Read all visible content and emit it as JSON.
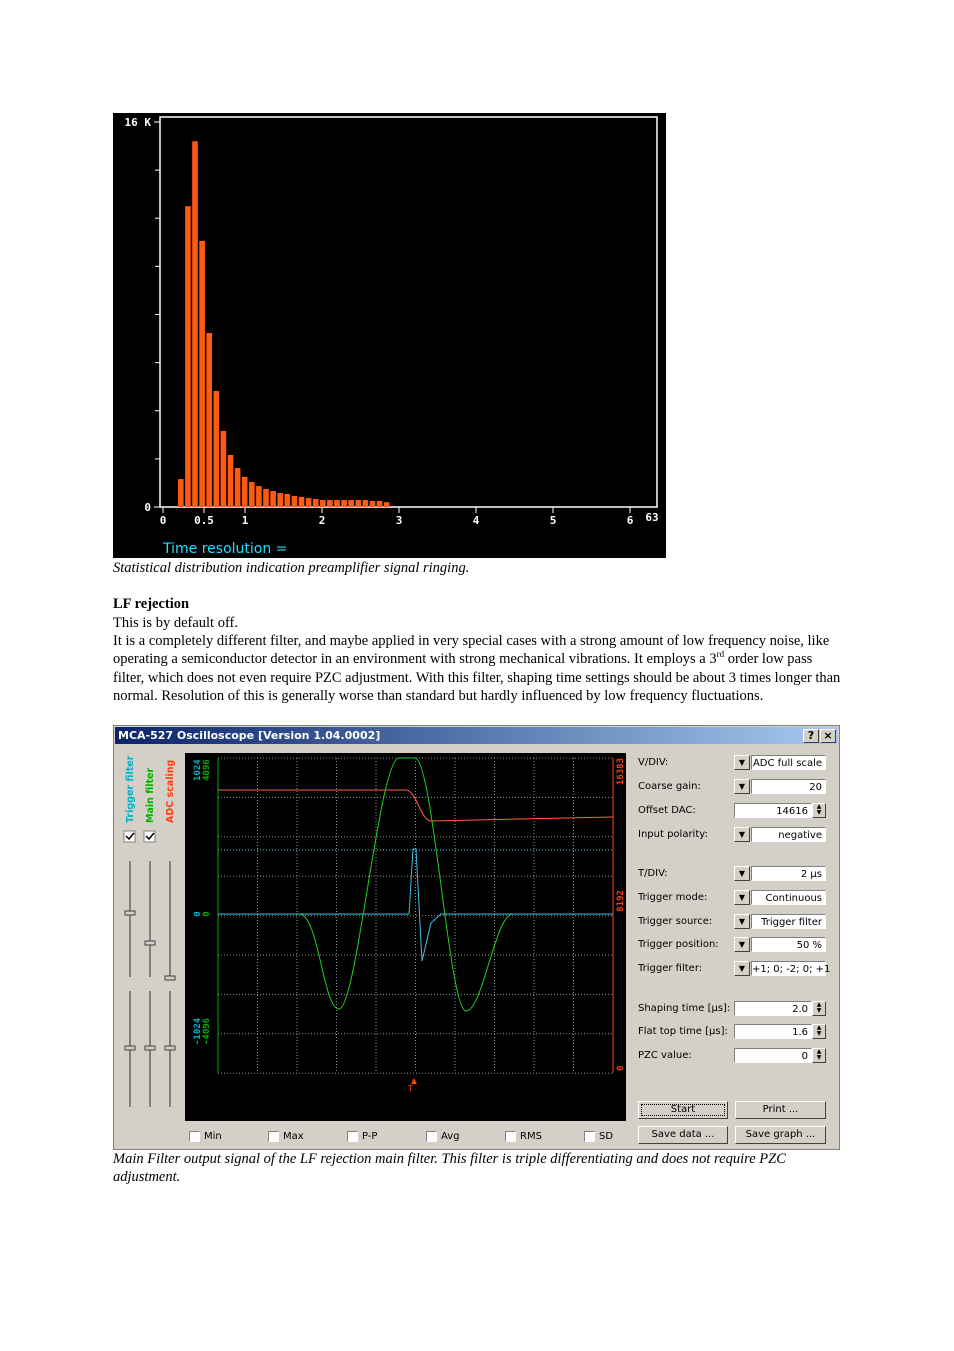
{
  "histogram": {
    "type": "bar",
    "color": "#ff5a14",
    "ylim": [
      0,
      16
    ],
    "yticks": [
      0,
      {
        "value": 16,
        "label": "16 K"
      }
    ],
    "yminor": [
      2,
      4,
      6,
      8,
      10,
      12,
      14
    ],
    "xticks": [
      0,
      0.5,
      1,
      2,
      3,
      4,
      5,
      6
    ],
    "x_end_label": "63",
    "values": [
      1.16,
      12.5,
      15.2,
      11.06,
      7.23,
      4.82,
      3.16,
      2.16,
      1.62,
      1.25,
      1.04,
      0.87,
      0.75,
      0.66,
      0.58,
      0.54,
      0.46,
      0.42,
      0.37,
      0.33,
      0.29,
      0.29,
      0.29,
      0.29,
      0.29,
      0.29,
      0.29,
      0.25,
      0.25,
      0.2
    ],
    "footer": "Time resolution ="
  },
  "caption1": "Statistical distribution indication preamplifier signal ringing.",
  "section": {
    "heading": "LF rejection",
    "p1": "This is by default off.",
    "p2_start": "It is a completely different filter, and maybe applied in very special cases with a strong amount of low frequency noise, like operating a semiconductor detector in an environment with strong mechanical vibrations. It employs a 3",
    "p2_sup": "rd",
    "p2_end": " order low pass filter, which does not even require PZC adjustment. With this filter, shaping time settings should be about 3 times longer than normal. Resolution of this is generally worse than standard but hardly influenced by low frequency fluctuations."
  },
  "oscilloscope": {
    "title": "MCA-527 Oscilloscope [Version 1.04.0002]",
    "help": "?",
    "close": "×",
    "channels": [
      {
        "name": "Trigger filter",
        "color": "#00b4c8",
        "checked": true
      },
      {
        "name": "Main filter",
        "color": "#00b000",
        "checked": true
      },
      {
        "name": "ADC scaling",
        "color": "#ff4010",
        "checked": false
      }
    ],
    "left_top": [
      "1024",
      "4096"
    ],
    "left_mid": [
      "0",
      "0"
    ],
    "left_bottom": [
      "-1024",
      "-4096"
    ],
    "right_scale": [
      "16383",
      "8192",
      "0"
    ],
    "trigger_mark": "T",
    "settings": [
      {
        "label": "V/DIV:",
        "value": "ADC full scale",
        "control": "dropdown"
      },
      {
        "label": "Coarse gain:",
        "value": "20",
        "control": "dropdown"
      },
      {
        "label": "Offset DAC:",
        "value": "14616",
        "control": "spin"
      },
      {
        "label": "Input polarity:",
        "value": "negative",
        "control": "dropdown"
      },
      {
        "label": "T/DIV:",
        "value": "2 µs",
        "control": "dropdown"
      },
      {
        "label": "Trigger mode:",
        "value": "Continuous",
        "control": "dropdown"
      },
      {
        "label": "Trigger source:",
        "value": "Trigger filter",
        "control": "dropdown"
      },
      {
        "label": "Trigger position:",
        "value": "50 %",
        "control": "dropdown"
      },
      {
        "label": "Trigger filter:",
        "value": "+1; 0; -2; 0; +1",
        "control": "dropdown"
      },
      {
        "label": "Shaping time [µs]:",
        "value": "2.0",
        "control": "spin"
      },
      {
        "label": "Flat top time [µs]:",
        "value": "1.6",
        "control": "spin"
      },
      {
        "label": "PZC value:",
        "value": "0",
        "control": "spin"
      }
    ],
    "buttons": [
      "Start",
      "Print ...",
      "Save data ...",
      "Save graph ..."
    ],
    "stats": [
      "Min",
      "Max",
      "P-P",
      "Avg",
      "RMS",
      "SD"
    ]
  },
  "caption2": "Main Filter output signal of the LF rejection main filter. This filter is triple differentiating and does not require PZC adjustment."
}
